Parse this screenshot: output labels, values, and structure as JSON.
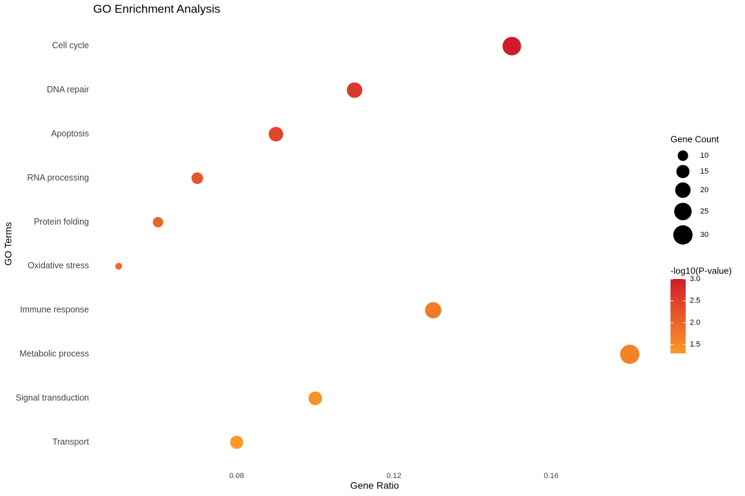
{
  "chart_data": {
    "type": "dot",
    "title": "GO Enrichment Analysis",
    "x_label": "Gene Ratio",
    "y_label": "GO Terms",
    "categories": [
      "Cell cycle",
      "DNA repair",
      "Apoptosis",
      "RNA processing",
      "Protein folding",
      "Oxidative stress",
      "Immune response",
      "Metabolic process",
      "Signal transduction",
      "Transport"
    ],
    "x": [
      0.15,
      0.11,
      0.09,
      0.07,
      0.06,
      0.05,
      0.13,
      0.18,
      0.1,
      0.08
    ],
    "size": [
      28,
      20,
      18,
      12,
      10,
      5,
      22,
      30,
      16,
      15
    ],
    "color_values": [
      3.0,
      2.6,
      2.4,
      2.2,
      2.0,
      1.9,
      1.7,
      1.6,
      1.4,
      1.3
    ],
    "xlim": [
      0.0435,
      0.1865
    ],
    "xticks": [
      0.08,
      0.12,
      0.16
    ],
    "grid": false,
    "size_legend": {
      "title": "Gene Count",
      "breaks": [
        10,
        15,
        20,
        25,
        30
      ]
    },
    "color_legend": {
      "title": "-log10(P-value)",
      "low": "#fd9827",
      "high": "#d01c2a",
      "limits": [
        1.3,
        3.0
      ],
      "ticks": [
        {
          "value": 3,
          "label": "3.0"
        },
        2.5,
        {
          "value": 2,
          "label": "2.0"
        },
        1.5
      ]
    }
  }
}
